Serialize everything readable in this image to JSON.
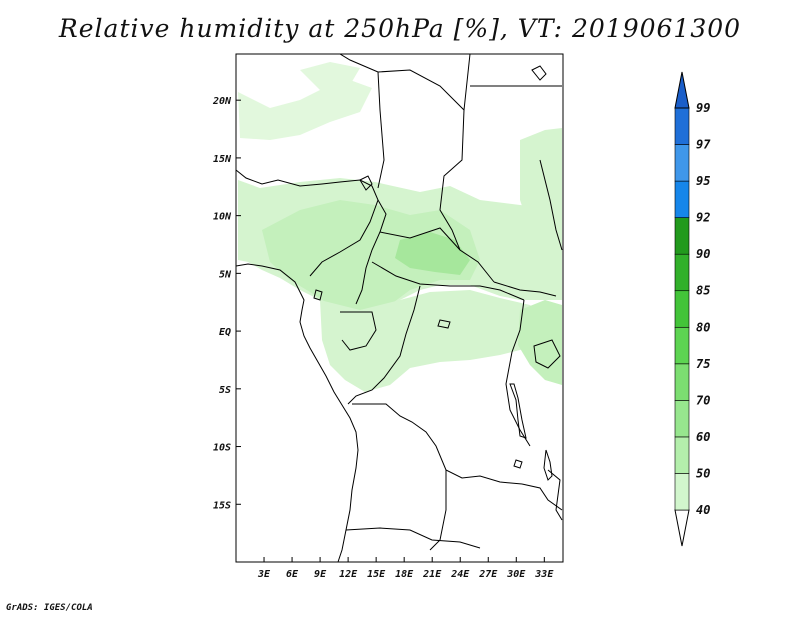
{
  "title": "Relative humidity at 250hPa [%], VT: 2019061300",
  "credit": "GrADS: IGES/COLA",
  "map": {
    "lon_range": [
      0,
      35
    ],
    "lat_range": [
      -20,
      24
    ],
    "lon_ticks": [
      "3E",
      "6E",
      "9E",
      "12E",
      "15E",
      "18E",
      "21E",
      "24E",
      "27E",
      "30E",
      "33E"
    ],
    "lon_tick_values": [
      3,
      6,
      9,
      12,
      15,
      18,
      21,
      24,
      27,
      30,
      33
    ],
    "lat_ticks": [
      "20N",
      "15N",
      "10N",
      "5N",
      "EQ",
      "5S",
      "10S",
      "15S"
    ],
    "lat_tick_values": [
      20,
      15,
      10,
      5,
      0,
      -5,
      -10,
      -15
    ]
  },
  "colorbar": {
    "labels": [
      "40",
      "50",
      "60",
      "70",
      "75",
      "80",
      "85",
      "90",
      "92",
      "95",
      "97",
      "99"
    ],
    "colors": [
      "#e8fbe6",
      "#d2f6cd",
      "#b4efac",
      "#97e68e",
      "#7cde71",
      "#5dd452",
      "#43c439",
      "#31b02a",
      "#229a1d",
      "#1686ea",
      "#3f97ea",
      "#1f6fd8",
      "#1a5ec9"
    ]
  },
  "humidity_colors": {
    "light": "#e2f8dd",
    "medium": "#c4f0bc",
    "dense": "#a6e79c"
  }
}
